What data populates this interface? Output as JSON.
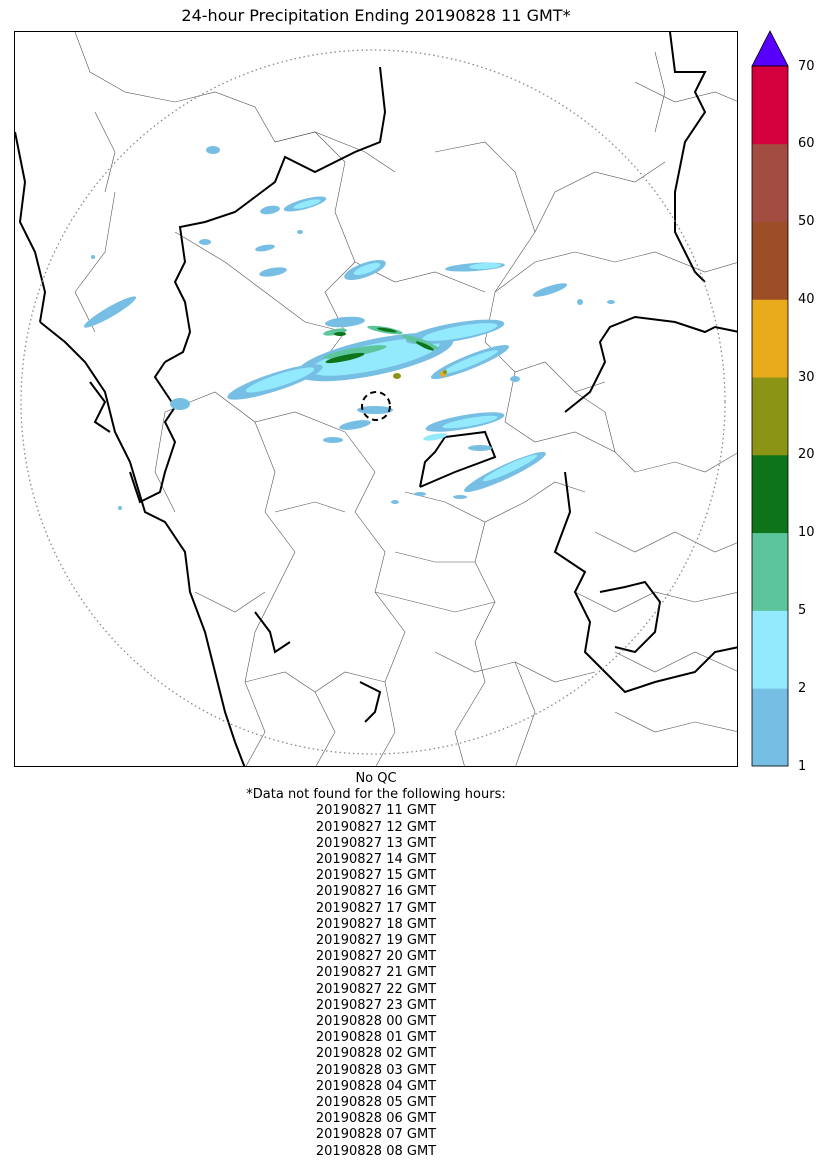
{
  "title": "24-hour Precipitation Ending 20190828 11 GMT*",
  "colorbar": {
    "ticks": [
      "1",
      "2",
      "5",
      "10",
      "20",
      "30",
      "40",
      "50",
      "60",
      "70"
    ],
    "colors": [
      "#76bee3",
      "#94eafd",
      "#5dc59b",
      "#0e741a",
      "#8c9416",
      "#e7ab1b",
      "#9c4e27",
      "#a34c42",
      "#d5003e"
    ],
    "extend_color": "#5700ff"
  },
  "notes": {
    "qc": "No QC",
    "missing_header": "*Data not found for the following hours:",
    "missing_hours": [
      "20190827 11 GMT",
      "20190827 12 GMT",
      "20190827 13 GMT",
      "20190827 14 GMT",
      "20190827 15 GMT",
      "20190827 16 GMT",
      "20190827 17 GMT",
      "20190827 18 GMT",
      "20190827 19 GMT",
      "20190827 20 GMT",
      "20190827 21 GMT",
      "20190827 22 GMT",
      "20190827 23 GMT",
      "20190828 00 GMT",
      "20190828 01 GMT",
      "20190828 02 GMT",
      "20190828 03 GMT",
      "20190828 04 GMT",
      "20190828 05 GMT",
      "20190828 06 GMT",
      "20190828 07 GMT",
      "20190828 08 GMT"
    ]
  },
  "map": {
    "range_ring_style": "dotted gray",
    "radar_marker_style": "dashed black circle",
    "precip_colors_visible": [
      "#76bee3",
      "#94eafd",
      "#5dc59b",
      "#0e741a",
      "#8c9416",
      "#e7ab1b"
    ]
  }
}
